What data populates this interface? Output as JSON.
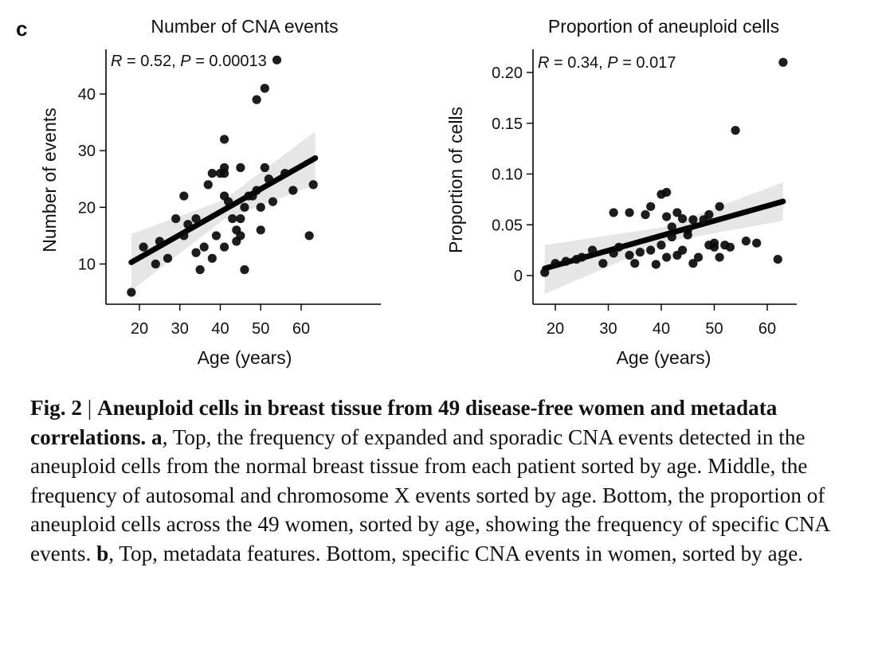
{
  "panel_letter": "c",
  "chart_data": [
    {
      "type": "scatter",
      "title": "Number of CNA events",
      "xlabel": "Age (years)",
      "ylabel": "Number of events",
      "annotation": {
        "r_label": "R",
        "r_value": " = 0.52, ",
        "p_label": "P",
        "p_value": " = 0.00013"
      },
      "xlim": [
        16,
        64
      ],
      "ylim": [
        3.5,
        47.5
      ],
      "xticks": [
        20,
        30,
        40,
        50,
        60
      ],
      "yticks": [
        10,
        20,
        30,
        40
      ],
      "ytick_labels": [
        "10",
        "20",
        "30",
        "40"
      ],
      "fit": {
        "x": [
          18,
          63.5
        ],
        "y": [
          10.3,
          28.7
        ]
      },
      "band": {
        "upper": [
          [
            18,
            15.3
          ],
          [
            40.8,
            21.3
          ],
          [
            63.5,
            33.4
          ]
        ],
        "lower": [
          [
            18,
            5.3
          ],
          [
            40.8,
            17.8
          ],
          [
            63.5,
            24.0
          ]
        ]
      },
      "points": [
        [
          18,
          5
        ],
        [
          21,
          13
        ],
        [
          24,
          10
        ],
        [
          25,
          14
        ],
        [
          27,
          11
        ],
        [
          29,
          18
        ],
        [
          31,
          15
        ],
        [
          31,
          22
        ],
        [
          32,
          17
        ],
        [
          34,
          18
        ],
        [
          34,
          12
        ],
        [
          35,
          9
        ],
        [
          36,
          13
        ],
        [
          37,
          24
        ],
        [
          38,
          26
        ],
        [
          38,
          11
        ],
        [
          39,
          15
        ],
        [
          40,
          26
        ],
        [
          41,
          27
        ],
        [
          41,
          32
        ],
        [
          41,
          26
        ],
        [
          41,
          22
        ],
        [
          41,
          13
        ],
        [
          42,
          21
        ],
        [
          43,
          18
        ],
        [
          44,
          16
        ],
        [
          44,
          14
        ],
        [
          45,
          27
        ],
        [
          45,
          18
        ],
        [
          45,
          15
        ],
        [
          46,
          20
        ],
        [
          46,
          9
        ],
        [
          47,
          22
        ],
        [
          48,
          22
        ],
        [
          49,
          23
        ],
        [
          49,
          39
        ],
        [
          50,
          20
        ],
        [
          50,
          16
        ],
        [
          51,
          41
        ],
        [
          51,
          27
        ],
        [
          52,
          25
        ],
        [
          53,
          21
        ],
        [
          54,
          46
        ],
        [
          56,
          26
        ],
        [
          58,
          23
        ],
        [
          62,
          15
        ],
        [
          63,
          24
        ]
      ]
    },
    {
      "type": "scatter",
      "title": "Proportion of aneuploid cells",
      "xlabel": "Age (years)",
      "ylabel": "Proportion of cells",
      "annotation": {
        "r_label": "R",
        "r_value": " = 0.34, ",
        "p_label": "P",
        "p_value": " = 0.017"
      },
      "xlim": [
        16,
        64
      ],
      "ylim": [
        -0.03,
        0.215
      ],
      "xticks": [
        20,
        30,
        40,
        50,
        60
      ],
      "yticks": [
        0,
        0.05,
        0.1,
        0.15,
        0.2
      ],
      "ytick_labels": [
        "0",
        "0.05",
        "0.10",
        "0.15",
        "0.20"
      ],
      "fit": {
        "x": [
          18,
          63
        ],
        "y": [
          0.007,
          0.073
        ]
      },
      "band": {
        "upper": [
          [
            18,
            0.03
          ],
          [
            40.8,
            0.048
          ],
          [
            63,
            0.092
          ]
        ],
        "lower": [
          [
            18,
            -0.018
          ],
          [
            40.8,
            0.033
          ],
          [
            63,
            0.054
          ]
        ]
      },
      "points": [
        [
          18,
          0.003
        ],
        [
          20,
          0.012
        ],
        [
          22,
          0.014
        ],
        [
          24,
          0.016
        ],
        [
          25,
          0.018
        ],
        [
          27,
          0.025
        ],
        [
          29,
          0.012
        ],
        [
          31,
          0.022
        ],
        [
          31,
          0.062
        ],
        [
          32,
          0.028
        ],
        [
          34,
          0.062
        ],
        [
          34,
          0.02
        ],
        [
          35,
          0.012
        ],
        [
          36,
          0.023
        ],
        [
          37,
          0.06
        ],
        [
          38,
          0.068
        ],
        [
          38,
          0.025
        ],
        [
          39,
          0.011
        ],
        [
          40,
          0.08
        ],
        [
          40,
          0.03
        ],
        [
          41,
          0.082
        ],
        [
          41,
          0.058
        ],
        [
          41,
          0.018
        ],
        [
          42,
          0.048
        ],
        [
          42,
          0.038
        ],
        [
          43,
          0.062
        ],
        [
          43,
          0.02
        ],
        [
          44,
          0.056
        ],
        [
          44,
          0.025
        ],
        [
          45,
          0.045
        ],
        [
          45,
          0.04
        ],
        [
          46,
          0.012
        ],
        [
          46,
          0.055
        ],
        [
          47,
          0.018
        ],
        [
          48,
          0.055
        ],
        [
          49,
          0.03
        ],
        [
          49,
          0.06
        ],
        [
          50,
          0.028
        ],
        [
          50,
          0.032
        ],
        [
          51,
          0.068
        ],
        [
          51,
          0.018
        ],
        [
          52,
          0.03
        ],
        [
          53,
          0.028
        ],
        [
          54,
          0.143
        ],
        [
          56,
          0.034
        ],
        [
          58,
          0.032
        ],
        [
          62,
          0.016
        ],
        [
          63,
          0.21
        ]
      ]
    }
  ],
  "caption": {
    "fig_label": "Fig. 2",
    "separator": " | ",
    "title": "Aneuploid cells in breast tissue from 49 disease-free women and metadata correlations.",
    "a_label": " a",
    "a_text": ", Top, the frequency of expanded and sporadic CNA events detected in the aneuploid cells from the normal breast tissue from each patient sorted by age. Middle, the frequency of autosomal and chromosome X events sorted by age. Bottom, the proportion of aneuploid cells across the 49 women, sorted by age, showing the frequency of specific CNA events. ",
    "b_label": "b",
    "b_text": ", Top, metadata features. Bottom, specific CNA events in women, sorted by age."
  }
}
